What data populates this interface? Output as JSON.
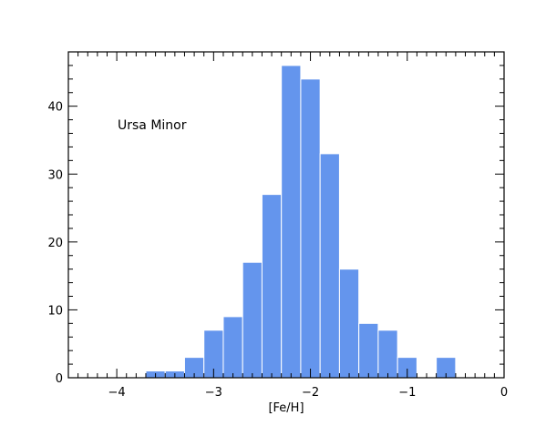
{
  "chart_data": {
    "type": "bar",
    "title": "",
    "xlabel": "[Fe/H]",
    "ylabel": "",
    "annotation": "Ursa Minor",
    "xlim": [
      -4.5,
      0
    ],
    "ylim": [
      0,
      48
    ],
    "bin_width": 0.2,
    "bins": [
      {
        "x0": -3.7,
        "x1": -3.5,
        "value": 1
      },
      {
        "x0": -3.5,
        "x1": -3.3,
        "value": 1
      },
      {
        "x0": -3.3,
        "x1": -3.1,
        "value": 3
      },
      {
        "x0": -3.1,
        "x1": -2.9,
        "value": 7
      },
      {
        "x0": -2.9,
        "x1": -2.7,
        "value": 9
      },
      {
        "x0": -2.7,
        "x1": -2.5,
        "value": 17
      },
      {
        "x0": -2.5,
        "x1": -2.3,
        "value": 27
      },
      {
        "x0": -2.3,
        "x1": -2.1,
        "value": 46
      },
      {
        "x0": -2.1,
        "x1": -1.9,
        "value": 44
      },
      {
        "x0": -1.9,
        "x1": -1.7,
        "value": 33
      },
      {
        "x0": -1.7,
        "x1": -1.5,
        "value": 16
      },
      {
        "x0": -1.5,
        "x1": -1.3,
        "value": 8
      },
      {
        "x0": -1.3,
        "x1": -1.1,
        "value": 7
      },
      {
        "x0": -1.1,
        "x1": -0.9,
        "value": 3
      },
      {
        "x0": -0.7,
        "x1": -0.5,
        "value": 3
      }
    ],
    "x_major_ticks": [
      -4,
      -3,
      -2,
      -1,
      0
    ],
    "x_tick_labels": [
      "−4",
      "−3",
      "−2",
      "−1",
      "0"
    ],
    "x_minor_step": 0.1,
    "y_major_ticks": [
      0,
      10,
      20,
      30,
      40
    ],
    "y_tick_labels": [
      "0",
      "10",
      "20",
      "30",
      "40"
    ],
    "y_minor_step": 2,
    "grid": false,
    "colors": {
      "bar_fill": "#6495ED",
      "bar_edge": "#ffffff",
      "axes": "#000000"
    }
  }
}
